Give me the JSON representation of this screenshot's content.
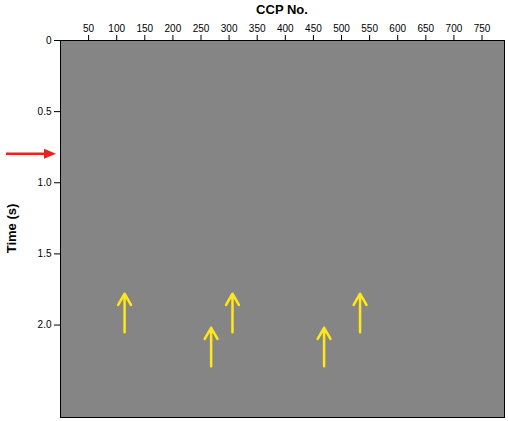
{
  "chart_data": {
    "type": "seismic_section",
    "x_label": "CCP No.",
    "y_label": "Time (s)",
    "color": "#858585",
    "xlim": [
      0,
      790
    ],
    "ylim": [
      0,
      2.65
    ],
    "xticks": [
      50,
      100,
      150,
      200,
      250,
      300,
      350,
      400,
      450,
      500,
      550,
      600,
      650,
      700,
      750
    ],
    "yticks": [
      0,
      0.5,
      {
        "value": 1,
        "label": "1.0"
      },
      1.5,
      {
        "value": 2,
        "label": "2.0"
      }
    ],
    "annotations": [
      {
        "type": "arrow",
        "color": "#e8231f",
        "y": 0.8
      },
      {
        "type": "arrow",
        "color": "#ffe81a",
        "x": 114,
        "y_from": 2.05,
        "y_to": 1.78
      },
      {
        "type": "arrow",
        "color": "#ffe81a",
        "x": 306,
        "y_from": 2.05,
        "y_to": 1.78
      },
      {
        "type": "arrow",
        "color": "#ffe81a",
        "x": 533,
        "y_from": 2.05,
        "y_to": 1.78
      },
      {
        "type": "arrow",
        "color": "#ffe81a",
        "x": 268,
        "y_from": 2.29,
        "y_to": 2.02
      },
      {
        "type": "arrow",
        "color": "#ffe81a",
        "x": 469,
        "y_from": 2.29,
        "y_to": 2.02
      }
    ]
  }
}
